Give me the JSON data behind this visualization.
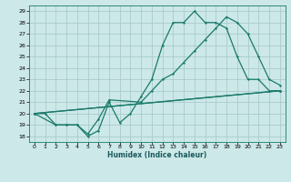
{
  "xlabel": "Humidex (Indice chaleur)",
  "background_color": "#cce8e8",
  "grid_color": "#aacccc",
  "line_color": "#1a7a6a",
  "xlim": [
    -0.5,
    23.5
  ],
  "ylim": [
    17.5,
    29.5
  ],
  "xticks": [
    0,
    1,
    2,
    3,
    4,
    5,
    6,
    7,
    8,
    9,
    10,
    11,
    12,
    13,
    14,
    15,
    16,
    17,
    18,
    19,
    20,
    21,
    22,
    23
  ],
  "yticks": [
    18,
    19,
    20,
    21,
    22,
    23,
    24,
    25,
    26,
    27,
    28,
    29
  ],
  "curve1_x": [
    0,
    1,
    2,
    3,
    4,
    5,
    6,
    7,
    8,
    9,
    10,
    11,
    12,
    13,
    14,
    15,
    16,
    17,
    18,
    19,
    20,
    21,
    22,
    23
  ],
  "curve1_y": [
    20,
    20,
    19,
    19,
    19,
    18,
    18.5,
    21,
    19.2,
    20,
    21.5,
    23,
    26,
    28,
    28,
    29,
    28,
    28,
    27.5,
    25,
    23,
    23,
    22,
    22
  ],
  "curve2_x": [
    0,
    2,
    3,
    4,
    5,
    6,
    7,
    10,
    11,
    12,
    13,
    14,
    15,
    16,
    17,
    18,
    19,
    20,
    21,
    22,
    23
  ],
  "curve2_y": [
    20,
    19,
    19,
    19,
    18.2,
    19.5,
    21.2,
    21,
    22,
    23,
    23.5,
    24.5,
    25.5,
    26.5,
    27.5,
    28.5,
    28,
    27,
    25,
    23,
    22.5
  ],
  "curve3_x": [
    0,
    23
  ],
  "curve3_y": [
    20,
    22
  ],
  "curve4_x": [
    0,
    23
  ],
  "curve4_y": [
    20,
    22
  ]
}
